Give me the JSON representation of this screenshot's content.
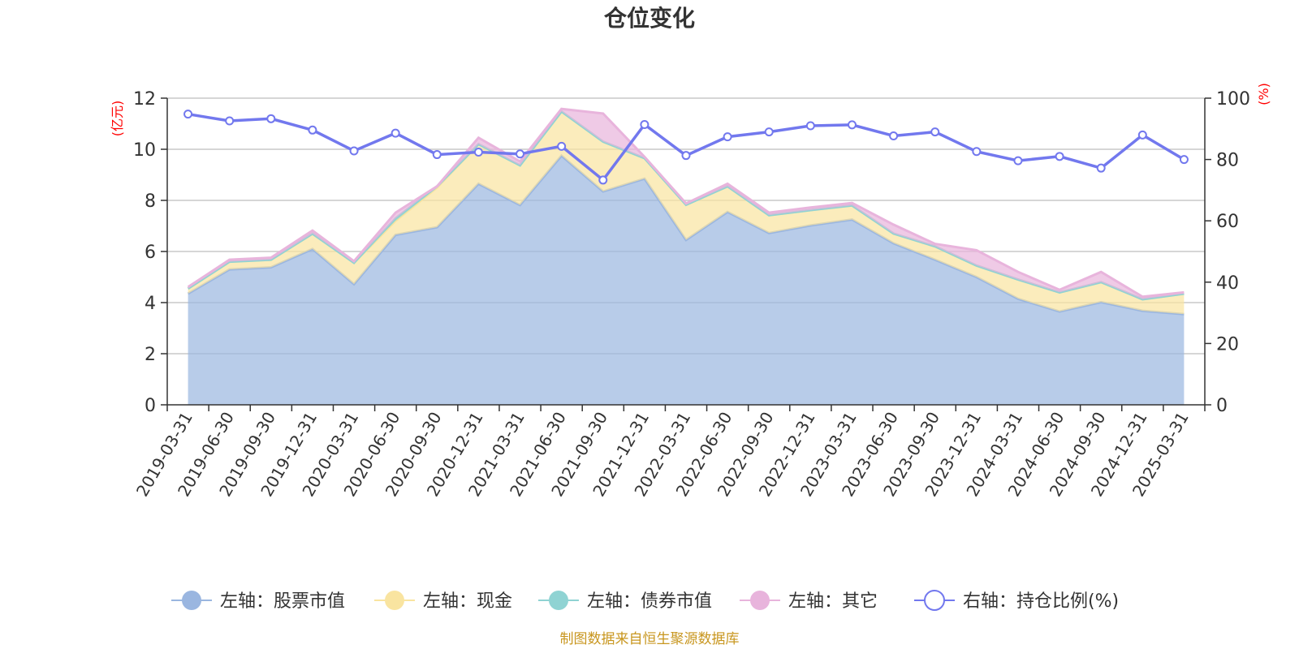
{
  "chart_data": {
    "type": "area",
    "title": "仓位变化",
    "left_unit": "(亿元)",
    "right_unit": "(%)",
    "source": "制图数据来自恒生聚源数据库",
    "categories": [
      "2019-03-31",
      "2019-06-30",
      "2019-09-30",
      "2019-12-31",
      "2020-03-31",
      "2020-06-30",
      "2020-09-30",
      "2020-12-31",
      "2021-03-31",
      "2021-06-30",
      "2021-09-30",
      "2021-12-31",
      "2022-03-31",
      "2022-06-30",
      "2022-09-30",
      "2022-12-31",
      "2023-03-31",
      "2023-06-30",
      "2023-09-30",
      "2023-12-31",
      "2024-03-31",
      "2024-06-30",
      "2024-09-30",
      "2024-12-31",
      "2025-03-31"
    ],
    "left_axis": {
      "min": 0,
      "max": 12,
      "ticks": [
        0,
        2,
        4,
        6,
        8,
        10,
        12
      ]
    },
    "right_axis": {
      "min": 0,
      "max": 100,
      "ticks": [
        0,
        20,
        40,
        60,
        80,
        100
      ]
    },
    "grid": true,
    "legend_position": "bottom",
    "series": [
      {
        "name": "左轴：股票市值",
        "axis": "left",
        "kind": "stacked-area",
        "color": "#9ab6e0",
        "values": [
          4.35,
          5.3,
          5.38,
          6.1,
          4.72,
          6.65,
          6.95,
          8.65,
          7.82,
          9.75,
          8.35,
          8.85,
          6.45,
          7.55,
          6.72,
          7.02,
          7.25,
          6.32,
          5.68,
          5.0,
          4.15,
          3.65,
          4.02,
          3.68,
          3.55
        ]
      },
      {
        "name": "左轴：现金",
        "axis": "left",
        "kind": "stacked-area",
        "color": "#f9e4a0",
        "values": [
          0.2,
          0.3,
          0.3,
          0.6,
          0.84,
          0.55,
          1.55,
          1.55,
          1.55,
          1.73,
          1.95,
          0.8,
          1.38,
          1.0,
          0.7,
          0.6,
          0.55,
          0.38,
          0.52,
          0.45,
          0.75,
          0.75,
          0.78,
          0.45,
          0.8
        ]
      },
      {
        "name": "左轴：债券市值",
        "axis": "left",
        "kind": "stacked-area",
        "color": "#8fd3d3",
        "values": [
          0,
          0,
          0,
          0,
          0,
          0.1,
          0.05,
          0,
          0,
          0,
          0,
          0,
          0,
          0,
          0,
          0,
          0,
          0,
          0,
          0,
          0,
          0,
          0,
          0,
          0
        ]
      },
      {
        "name": "左轴：其它",
        "axis": "left",
        "kind": "stacked-area",
        "color": "#e8b4dc",
        "values": [
          0.06,
          0.08,
          0.08,
          0.12,
          0.06,
          0.22,
          0.0,
          0.25,
          0.15,
          0.1,
          1.1,
          0.05,
          0.05,
          0.1,
          0.1,
          0.1,
          0.1,
          0.35,
          0.1,
          0.6,
          0.3,
          0.1,
          0.4,
          0.1,
          0.05
        ]
      },
      {
        "name": "右轴：持仓比例(%)",
        "axis": "right",
        "kind": "line",
        "color": "#7278ee",
        "values": [
          94.8,
          92.6,
          93.3,
          89.6,
          82.8,
          88.6,
          81.6,
          82.4,
          81.8,
          84.3,
          73.3,
          91.4,
          81.3,
          87.4,
          89.0,
          91.0,
          91.3,
          87.7,
          89.0,
          82.6,
          79.6,
          81.0,
          77.2,
          88.0,
          80.0
        ]
      }
    ]
  }
}
